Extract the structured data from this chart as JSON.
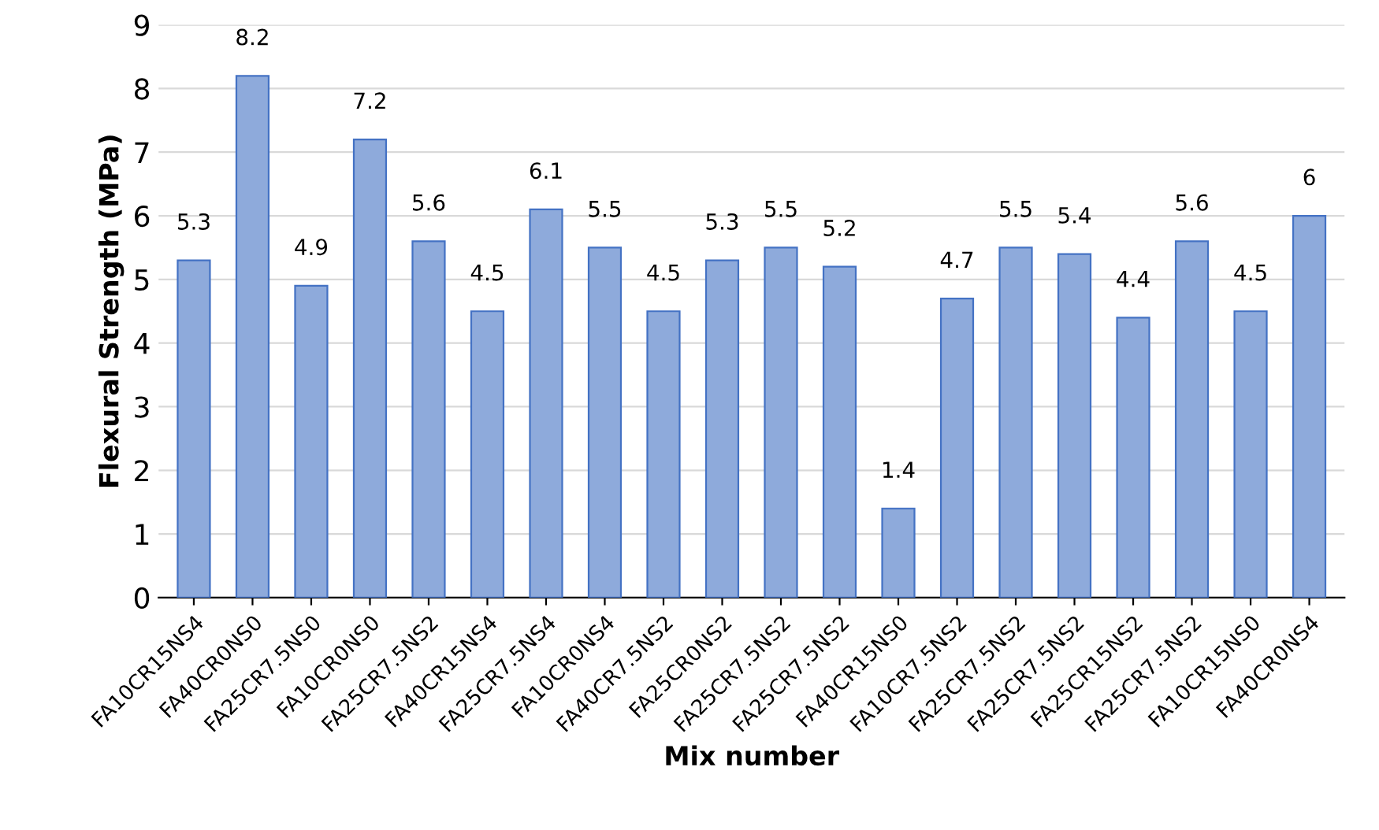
{
  "chart_data": {
    "type": "bar",
    "xlabel": "Mix number",
    "ylabel": "Flexural Strength (MPa)",
    "categories": [
      "FA10CR15NS4",
      "FA40CR0NS0",
      "FA25CR7.5NS0",
      "FA10CR0NS0",
      "FA25CR7.5NS2",
      "FA40CR15NS4",
      "FA25CR7.5NS4",
      "FA10CR0NS4",
      "FA40CR7.5NS2",
      "FA25CR0NS2",
      "FA25CR7.5NS2",
      "FA25CR7.5NS2",
      "FA40CR15NS0",
      "FA10CR7.5NS2",
      "FA25CR7.5NS2",
      "FA25CR7.5NS2",
      "FA25CR15NS2",
      "FA25CR7.5NS2",
      "FA10CR15NS0",
      "FA40CR0NS4"
    ],
    "values": [
      5.3,
      8.2,
      4.9,
      7.2,
      5.6,
      4.5,
      6.1,
      5.5,
      4.5,
      5.3,
      5.5,
      5.2,
      1.4,
      4.7,
      5.5,
      5.4,
      4.4,
      5.6,
      4.5,
      6
    ],
    "color": "#8eaadb",
    "data_labels": true,
    "grid": "y",
    "ylim": [
      0,
      9
    ],
    "yticks": [
      0,
      1,
      2,
      3,
      4,
      5,
      6,
      7,
      8,
      9
    ]
  }
}
